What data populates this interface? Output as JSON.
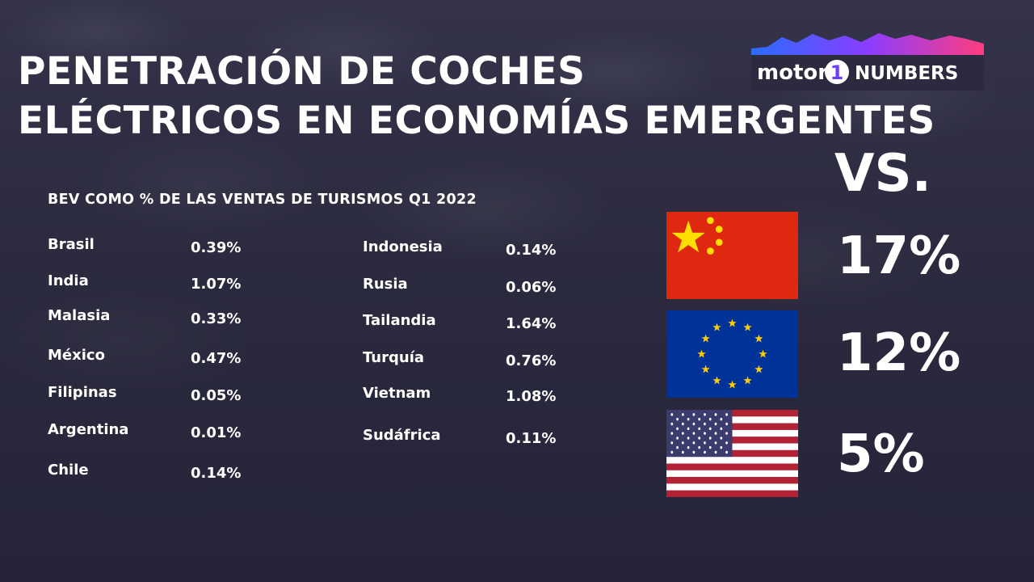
{
  "title_lines": [
    "PENETRACIÓN DE COCHES",
    "ELÉCTRICOS EN ECONOMÍAS EMERGENTES"
  ],
  "logo": {
    "brand": "motor",
    "numeral": "1",
    "suffix": "NUMBERS"
  },
  "vs_label": "VS.",
  "chart_data": {
    "type": "table",
    "title": "BEV COMO % DE LAS VENTAS DE TURISMOS Q1 2022",
    "unit": "%",
    "columns": [
      [
        {
          "country": "Brasil",
          "value": 0.39,
          "label": "0.39%"
        },
        {
          "country": "India",
          "value": 1.07,
          "label": "1.07%"
        },
        {
          "country": "Malasia",
          "value": 0.33,
          "label": "0.33%"
        },
        {
          "country": "México",
          "value": 0.47,
          "label": "0.47%"
        },
        {
          "country": "Filipinas",
          "value": 0.05,
          "label": "0.05%"
        },
        {
          "country": "Argentina",
          "value": 0.01,
          "label": "0.01%"
        },
        {
          "country": "Chile",
          "value": 0.14,
          "label": "0.14%"
        }
      ],
      [
        {
          "country": "Indonesia",
          "value": 0.14,
          "label": "0.14%"
        },
        {
          "country": "Rusia",
          "value": 0.06,
          "label": "0.06%"
        },
        {
          "country": "Tailandia",
          "value": 1.64,
          "label": "1.64%"
        },
        {
          "country": "Turquía",
          "value": 0.76,
          "label": "0.76%"
        },
        {
          "country": "Vietnam",
          "value": 1.08,
          "label": "1.08%"
        },
        {
          "country": "Sudáfrica",
          "value": 0.11,
          "label": "0.11%"
        }
      ]
    ],
    "comparison": [
      {
        "flag": "china-flag",
        "value": 17,
        "label": "17%"
      },
      {
        "flag": "eu-flag",
        "value": 12,
        "label": "12%"
      },
      {
        "flag": "usa-flag",
        "value": 5,
        "label": "5%"
      }
    ]
  },
  "colors": {
    "china_red": "#de2910",
    "china_yellow": "#ffde00",
    "eu_blue": "#003399",
    "eu_gold": "#ffcc00",
    "usa_red": "#b22234",
    "usa_blue": "#3c3b6e",
    "logo_gradient": [
      "#2a6cff",
      "#8a3dff",
      "#ff3d7f"
    ]
  }
}
